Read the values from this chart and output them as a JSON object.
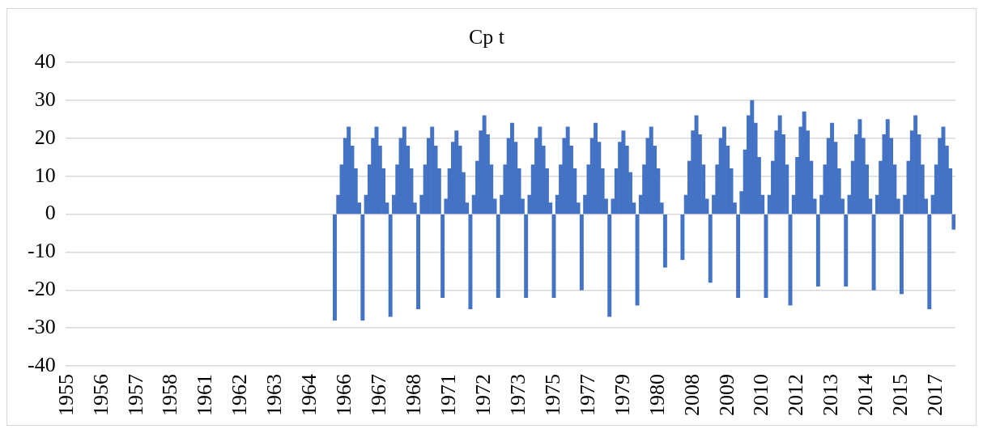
{
  "chart_data": {
    "type": "bar",
    "title": "Cp t",
    "categories": [
      "1955",
      null,
      null,
      null,
      null,
      null,
      null,
      null,
      null,
      null,
      "1956",
      null,
      null,
      null,
      null,
      null,
      null,
      null,
      null,
      null,
      "1957",
      null,
      null,
      null,
      null,
      null,
      null,
      null,
      null,
      null,
      "1958",
      null,
      null,
      null,
      null,
      null,
      null,
      null,
      null,
      null,
      "1961",
      null,
      null,
      null,
      null,
      null,
      null,
      null,
      null,
      null,
      "1962",
      null,
      null,
      null,
      null,
      null,
      null,
      null,
      null,
      null,
      "1963",
      null,
      null,
      null,
      null,
      null,
      null,
      null,
      null,
      null,
      "1964",
      null,
      null,
      null,
      null,
      null,
      null,
      null,
      null,
      null,
      "1966",
      null,
      null,
      null,
      null,
      null,
      null,
      null,
      null,
      null,
      "1967",
      null,
      null,
      null,
      null,
      null,
      null,
      null,
      null,
      null,
      "1968",
      null,
      null,
      null,
      null,
      null,
      null,
      null,
      null,
      null,
      "1971",
      null,
      null,
      null,
      null,
      null,
      null,
      null,
      null,
      null,
      "1972",
      null,
      null,
      null,
      null,
      null,
      null,
      null,
      null,
      null,
      "1973",
      null,
      null,
      null,
      null,
      null,
      null,
      null,
      null,
      null,
      "1975",
      null,
      null,
      null,
      null,
      null,
      null,
      null,
      null,
      null,
      "1977",
      null,
      null,
      null,
      null,
      null,
      null,
      null,
      null,
      null,
      "1979",
      null,
      null,
      null,
      null,
      null,
      null,
      null,
      null,
      null,
      "1980",
      null,
      null,
      null,
      null,
      null,
      null,
      null,
      null,
      null,
      "2008",
      null,
      null,
      null,
      null,
      null,
      null,
      null,
      null,
      null,
      "2009",
      null,
      null,
      null,
      null,
      null,
      null,
      null,
      null,
      null,
      "2010",
      null,
      null,
      null,
      null,
      null,
      null,
      null,
      null,
      null,
      "2012",
      null,
      null,
      null,
      null,
      null,
      null,
      null,
      null,
      null,
      "2013",
      null,
      null,
      null,
      null,
      null,
      null,
      null,
      null,
      null,
      "2014",
      null,
      null,
      null,
      null,
      null,
      null,
      null,
      null,
      null,
      "2015",
      null,
      null,
      null,
      null,
      null,
      null,
      null,
      null,
      null,
      "2017",
      null,
      null,
      null,
      null,
      null
    ],
    "values": [
      null,
      null,
      null,
      null,
      null,
      null,
      null,
      null,
      null,
      null,
      null,
      null,
      null,
      null,
      null,
      null,
      null,
      null,
      null,
      null,
      null,
      null,
      null,
      null,
      null,
      null,
      null,
      null,
      null,
      null,
      null,
      null,
      null,
      null,
      null,
      null,
      null,
      null,
      null,
      null,
      null,
      null,
      null,
      null,
      null,
      null,
      null,
      null,
      null,
      null,
      null,
      null,
      null,
      null,
      null,
      null,
      null,
      null,
      null,
      null,
      null,
      null,
      null,
      null,
      null,
      null,
      null,
      null,
      null,
      null,
      null,
      null,
      null,
      null,
      null,
      null,
      null,
      -28,
      5,
      13,
      20,
      23,
      18,
      12,
      3,
      -28,
      5,
      13,
      20,
      23,
      18,
      12,
      3,
      -27,
      5,
      13,
      20,
      23,
      18,
      12,
      3,
      -25,
      5,
      13,
      20,
      23,
      18,
      12,
      -22,
      4,
      12,
      19,
      22,
      18,
      11,
      3,
      -25,
      5,
      14,
      22,
      26,
      21,
      13,
      4,
      -22,
      5,
      13,
      20,
      24,
      19,
      12,
      4,
      -22,
      5,
      13,
      20,
      23,
      18,
      12,
      3,
      -22,
      5,
      13,
      20,
      23,
      18,
      12,
      3,
      -20,
      5,
      13,
      20,
      24,
      19,
      12,
      4,
      -27,
      4,
      12,
      19,
      22,
      18,
      11,
      3,
      -24,
      5,
      13,
      20,
      23,
      18,
      12,
      3,
      -14,
      null,
      null,
      null,
      null,
      -12,
      5,
      14,
      22,
      26,
      21,
      13,
      4,
      -18,
      5,
      13,
      20,
      23,
      18,
      12,
      3,
      -22,
      6,
      17,
      26,
      30,
      24,
      15,
      5,
      -22,
      5,
      14,
      22,
      26,
      21,
      13,
      -24,
      5,
      15,
      23,
      27,
      22,
      14,
      4,
      -19,
      5,
      13,
      20,
      24,
      19,
      12,
      4,
      -19,
      5,
      14,
      21,
      25,
      20,
      13,
      4,
      -20,
      5,
      14,
      21,
      25,
      20,
      13,
      4,
      -21,
      5,
      14,
      22,
      26,
      21,
      13,
      4,
      -25,
      5,
      13,
      20,
      23,
      18,
      12,
      -4
    ],
    "color": "#4472c4",
    "ylim": [
      -40,
      40
    ],
    "yticks": [
      -40,
      -30,
      -20,
      -10,
      0,
      10,
      20,
      30,
      40
    ],
    "grid": "y"
  }
}
